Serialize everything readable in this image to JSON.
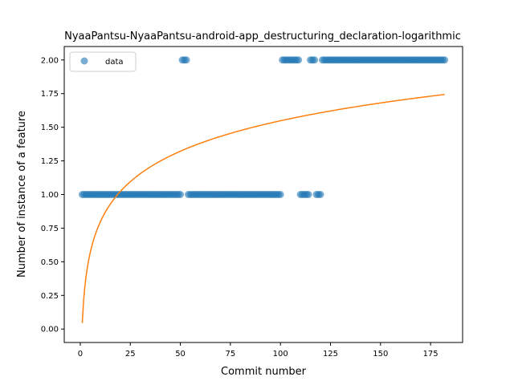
{
  "chart_data": {
    "type": "scatter",
    "title": "NyaaPantsu-NyaaPantsu-android-app_destructuring_declaration-logarithmic",
    "xlabel": "Commit number",
    "ylabel": "Number of instance of a feature",
    "xlim": [
      -8,
      191
    ],
    "ylim": [
      -0.1,
      2.1
    ],
    "x_ticks": [
      0,
      25,
      50,
      75,
      100,
      125,
      150,
      175
    ],
    "y_ticks": [
      0.0,
      0.25,
      0.5,
      0.75,
      1.0,
      1.25,
      1.5,
      1.75,
      2.0
    ],
    "x_tick_labels": [
      "0",
      "25",
      "50",
      "75",
      "100",
      "125",
      "150",
      "175"
    ],
    "y_tick_labels": [
      "0.00",
      "0.25",
      "0.50",
      "0.75",
      "1.00",
      "1.25",
      "1.50",
      "1.75",
      "2.00"
    ],
    "legend": {
      "position": "top-left",
      "entries": [
        "data"
      ]
    },
    "series": [
      {
        "name": "data",
        "kind": "scatter",
        "color": "#1f77b4",
        "segments": [
          {
            "x_start": 1,
            "x_end": 50,
            "y": 1
          },
          {
            "x_start": 51,
            "x_end": 53,
            "y": 2
          },
          {
            "x_start": 54,
            "x_end": 100,
            "y": 1
          },
          {
            "x_start": 101,
            "x_end": 109,
            "y": 2
          },
          {
            "x_start": 110,
            "x_end": 114,
            "y": 1
          },
          {
            "x_start": 115,
            "x_end": 117,
            "y": 2
          },
          {
            "x_start": 118,
            "x_end": 120,
            "y": 1
          },
          {
            "x_start": 121,
            "x_end": 182,
            "y": 2
          }
        ]
      },
      {
        "name": "",
        "kind": "fit",
        "color": "#ff7f0e",
        "model": "a*ln(x)+b",
        "a": 0.3266,
        "b": 0.044,
        "x_range": [
          1,
          182
        ]
      }
    ]
  }
}
